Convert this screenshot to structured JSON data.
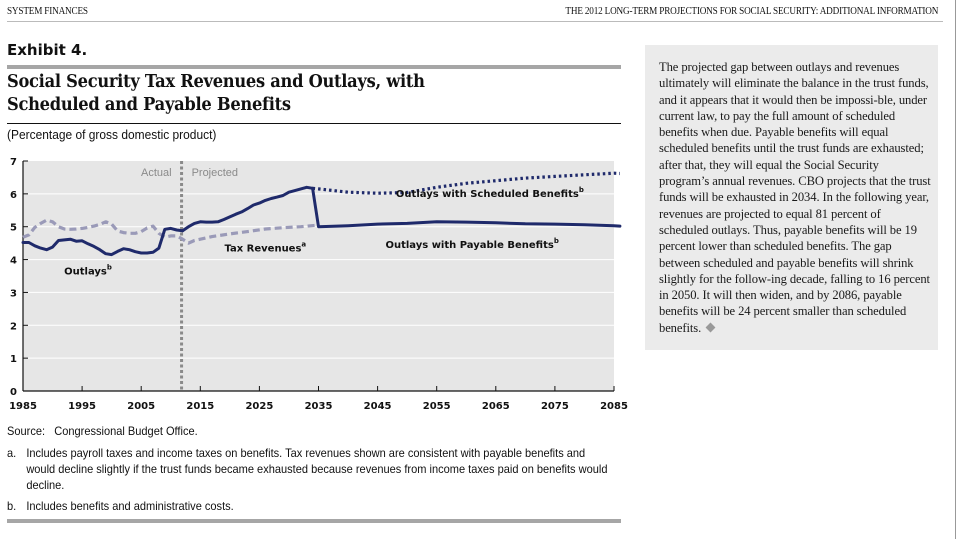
{
  "header": {
    "left": "SYSTEM FINANCES",
    "right": "THE 2012 LONG-TERM PROJECTIONS FOR SOCIAL SECURITY: ADDITIONAL INFORMATION"
  },
  "exhibit": {
    "label": "Exhibit 4.",
    "title_line1": "Social Security Tax Revenues and Outlays, with",
    "title_line2": "Scheduled and Payable Benefits",
    "subtitle": "(Percentage of gross domestic product)"
  },
  "chart_data": {
    "type": "line",
    "title": "Social Security Tax Revenues and Outlays, with Scheduled and Payable Benefits",
    "ylabel": "Percentage of gross domestic product",
    "xlabel": "",
    "xlim": [
      1985,
      2086
    ],
    "ylim": [
      0,
      7
    ],
    "x_ticks": [
      1985,
      1995,
      2005,
      2015,
      2025,
      2035,
      2045,
      2055,
      2065,
      2075,
      2085
    ],
    "y_ticks": [
      0,
      1,
      2,
      3,
      4,
      5,
      6,
      7
    ],
    "grid": true,
    "divider": {
      "year": 2012,
      "left_label": "Actual",
      "right_label": "Projected"
    },
    "annotations": [
      {
        "text": "Outlays",
        "sup": "b",
        "x": 1996,
        "y": 3.55
      },
      {
        "text": "Tax Revenues",
        "sup": "a",
        "x": 2026,
        "y": 4.25
      },
      {
        "text": "Outlays with Scheduled Benefits",
        "sup": "b",
        "x": 2064,
        "y": 5.9
      },
      {
        "text": "Outlays with Payable Benefits",
        "sup": "b",
        "x": 2061,
        "y": 4.35
      }
    ],
    "series": [
      {
        "name": "Outlays (actual)",
        "style": "solid",
        "x": [
          1985,
          1986,
          1987,
          1988,
          1989,
          1990,
          1991,
          1992,
          1993,
          1994,
          1995,
          1996,
          1997,
          1998,
          1999,
          2000,
          2001,
          2002,
          2003,
          2004,
          2005,
          2006,
          2007,
          2008,
          2009,
          2010,
          2011,
          2012
        ],
        "y": [
          4.52,
          4.52,
          4.42,
          4.35,
          4.3,
          4.38,
          4.58,
          4.6,
          4.62,
          4.56,
          4.57,
          4.48,
          4.4,
          4.3,
          4.18,
          4.15,
          4.25,
          4.33,
          4.3,
          4.24,
          4.2,
          4.2,
          4.22,
          4.35,
          4.92,
          4.95,
          4.9,
          4.88
        ]
      },
      {
        "name": "Outlays (projected, scheduled = payable until 2034)",
        "style": "solid",
        "x": [
          2012,
          2013,
          2014,
          2015,
          2016,
          2017,
          2018,
          2019,
          2020,
          2021,
          2022,
          2023,
          2024,
          2025,
          2026,
          2027,
          2028,
          2029,
          2030,
          2031,
          2032,
          2033,
          2034
        ],
        "y": [
          4.88,
          5.0,
          5.1,
          5.15,
          5.14,
          5.14,
          5.15,
          5.22,
          5.3,
          5.38,
          5.45,
          5.55,
          5.66,
          5.72,
          5.8,
          5.86,
          5.9,
          5.95,
          6.05,
          6.1,
          6.15,
          6.2,
          6.17
        ]
      },
      {
        "name": "Outlays with Scheduled Benefits",
        "style": "dotted",
        "x": [
          2034,
          2035,
          2040,
          2045,
          2050,
          2055,
          2060,
          2065,
          2070,
          2075,
          2080,
          2085,
          2086
        ],
        "y": [
          6.17,
          6.15,
          6.05,
          6.02,
          6.04,
          6.2,
          6.32,
          6.4,
          6.48,
          6.53,
          6.58,
          6.63,
          6.62
        ]
      },
      {
        "name": "Outlays with Payable Benefits",
        "style": "solid",
        "x": [
          2034,
          2035,
          2040,
          2045,
          2050,
          2055,
          2060,
          2065,
          2070,
          2075,
          2080,
          2085,
          2086
        ],
        "y": [
          6.17,
          5.0,
          5.03,
          5.08,
          5.1,
          5.15,
          5.14,
          5.12,
          5.09,
          5.08,
          5.06,
          5.03,
          5.02
        ]
      },
      {
        "name": "Tax Revenues",
        "style": "dashed",
        "x": [
          1985,
          1986,
          1987,
          1988,
          1989,
          1990,
          1991,
          1992,
          1993,
          1994,
          1995,
          1996,
          1997,
          1998,
          1999,
          2000,
          2001,
          2002,
          2003,
          2004,
          2005,
          2006,
          2007,
          2008,
          2009,
          2010,
          2011,
          2012,
          2013,
          2014,
          2015,
          2017,
          2020,
          2023,
          2026,
          2029,
          2032,
          2035
        ],
        "y": [
          4.68,
          4.75,
          4.98,
          5.1,
          5.2,
          5.15,
          5.0,
          4.93,
          4.92,
          4.93,
          4.95,
          4.98,
          5.02,
          5.07,
          5.15,
          5.08,
          4.87,
          4.82,
          4.8,
          4.8,
          4.85,
          4.96,
          5.02,
          4.8,
          4.68,
          4.72,
          4.72,
          4.62,
          4.5,
          4.58,
          4.62,
          4.7,
          4.78,
          4.85,
          4.93,
          4.97,
          5.0,
          5.05
        ]
      }
    ]
  },
  "footer": {
    "source_label": "Source:",
    "source_text": "Congressional Budget Office.",
    "notes": [
      {
        "letter": "a.",
        "text": "Includes payroll taxes and income taxes on benefits. Tax revenues shown are consistent with payable benefits and would decline slightly if the trust funds became exhausted because revenues from income taxes paid on benefits would decline."
      },
      {
        "letter": "b.",
        "text": "Includes benefits and administrative costs."
      }
    ]
  },
  "sidebar": {
    "text": "The projected gap between outlays and revenues ultimately will eliminate the balance in the trust funds, and it appears that it would then be impossi-ble, under current law, to pay the full amount of scheduled benefits when due. Payable benefits will equal scheduled benefits until the trust funds are exhausted; after that, they will equal the Social Security program’s annual revenues. CBO projects that the trust funds will be exhausted in 2034. In the following year, revenues are projected to equal 81 percent of scheduled outlays. Thus, payable benefits will be 19 percent lower than scheduled benefits. The gap between scheduled and payable benefits will shrink slightly for the follow-ing decade, falling to 16 percent in 2050. It will then widen, and by 2086, payable benefits will be 24 percent smaller than scheduled benefits.",
    "end_mark_icon": "diamond-icon"
  },
  "colors": {
    "outlays": "#1f2a6b",
    "revenues": "#9a9ab8",
    "divider": "#8a8a8a",
    "plot_bg": "#e6e6e6",
    "sidebar_bg": "#ebebeb"
  }
}
